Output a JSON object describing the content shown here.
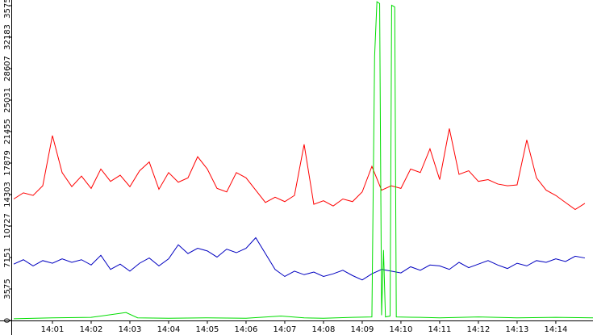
{
  "chart_data": {
    "type": "line",
    "xlim": [
      0,
      14.96
    ],
    "ylim": [
      0,
      36400
    ],
    "xticks": [
      {
        "value": 1,
        "label": "14:01"
      },
      {
        "value": 2,
        "label": "14:02"
      },
      {
        "value": 3,
        "label": "14:03"
      },
      {
        "value": 4,
        "label": "14:04"
      },
      {
        "value": 5,
        "label": "14:05"
      },
      {
        "value": 6,
        "label": "14:06"
      },
      {
        "value": 7,
        "label": "14:07"
      },
      {
        "value": 8,
        "label": "14:08"
      },
      {
        "value": 9,
        "label": "14:09"
      },
      {
        "value": 10,
        "label": "14:10"
      },
      {
        "value": 11,
        "label": "14:11"
      },
      {
        "value": 12,
        "label": "14:12"
      },
      {
        "value": 13,
        "label": "14:13"
      },
      {
        "value": 14,
        "label": "14:14"
      }
    ],
    "yticks": [
      0,
      3575,
      7151,
      10727,
      14303,
      17879,
      21455,
      25031,
      28607,
      32183,
      35759
    ],
    "series": [
      {
        "color": "#ff0000",
        "x": [
          0,
          0.25,
          0.5,
          0.75,
          1,
          1.25,
          1.5,
          1.75,
          2,
          2.25,
          2.5,
          2.75,
          3,
          3.25,
          3.5,
          3.75,
          4,
          4.25,
          4.5,
          4.75,
          5,
          5.25,
          5.5,
          5.75,
          6,
          6.25,
          6.5,
          6.75,
          7,
          7.25,
          7.5,
          7.75,
          8,
          8.25,
          8.5,
          8.75,
          9,
          9.25,
          9.5,
          9.75,
          10,
          10.25,
          10.5,
          10.75,
          11,
          11.25,
          11.5,
          11.75,
          12,
          12.25,
          12.5,
          12.75,
          13,
          13.25,
          13.5,
          13.75,
          14,
          14.25,
          14.5,
          14.75
        ],
        "values": [
          13800,
          14500,
          14200,
          15300,
          21000,
          16800,
          15200,
          16400,
          15000,
          17200,
          15800,
          16500,
          15200,
          17000,
          18000,
          14900,
          16800,
          15700,
          16200,
          18600,
          17200,
          15000,
          14600,
          16800,
          16200,
          14800,
          13400,
          14000,
          13500,
          14200,
          20000,
          13200,
          13600,
          13000,
          13800,
          13500,
          14600,
          17500,
          14800,
          15300,
          15000,
          17200,
          16800,
          19500,
          16000,
          21800,
          16600,
          17000,
          15800,
          16000,
          15500,
          15300,
          15400,
          20500,
          16200,
          14800,
          14200,
          13400,
          12600,
          13300
        ]
      },
      {
        "color": "#0000c0",
        "x": [
          0,
          0.25,
          0.5,
          0.75,
          1,
          1.25,
          1.5,
          1.75,
          2,
          2.25,
          2.5,
          2.75,
          3,
          3.25,
          3.5,
          3.75,
          4,
          4.25,
          4.5,
          4.75,
          5,
          5.25,
          5.5,
          5.75,
          6,
          6.25,
          6.5,
          6.75,
          7,
          7.25,
          7.5,
          7.75,
          8,
          8.25,
          8.5,
          8.75,
          9,
          9.25,
          9.5,
          9.75,
          10,
          10.25,
          10.5,
          10.75,
          11,
          11.25,
          11.5,
          11.75,
          12,
          12.25,
          12.5,
          12.75,
          13,
          13.25,
          13.5,
          13.75,
          14,
          14.25,
          14.5,
          14.75
        ],
        "values": [
          6400,
          6900,
          6200,
          6800,
          6500,
          7000,
          6600,
          6900,
          6300,
          7400,
          5800,
          6400,
          5600,
          6500,
          7100,
          6200,
          7000,
          8600,
          7600,
          8200,
          7900,
          7200,
          8100,
          7700,
          8200,
          9400,
          7600,
          5800,
          5000,
          5600,
          5200,
          5500,
          5000,
          5300,
          5700,
          5100,
          4600,
          5300,
          5800,
          5600,
          5400,
          6100,
          5700,
          6300,
          6200,
          5800,
          6600,
          6000,
          6400,
          6800,
          6300,
          5900,
          6500,
          6200,
          6800,
          6600,
          7000,
          6700,
          7300,
          7100
        ]
      },
      {
        "color": "#00dd00",
        "x": [
          0,
          1,
          2,
          2.9,
          3.2,
          4,
          5,
          6,
          6.9,
          7.5,
          8,
          8.75,
          9.25,
          9.32,
          9.38,
          9.45,
          9.5,
          9.55,
          9.6,
          9.72,
          9.76,
          9.84,
          9.88,
          10.5,
          11,
          12,
          13,
          14,
          14.96
        ],
        "values": [
          200,
          300,
          350,
          900,
          300,
          250,
          300,
          250,
          500,
          300,
          250,
          350,
          400,
          30000,
          36200,
          36000,
          600,
          8000,
          400,
          500,
          35800,
          35600,
          400,
          350,
          300,
          400,
          300,
          350,
          300
        ]
      }
    ]
  }
}
